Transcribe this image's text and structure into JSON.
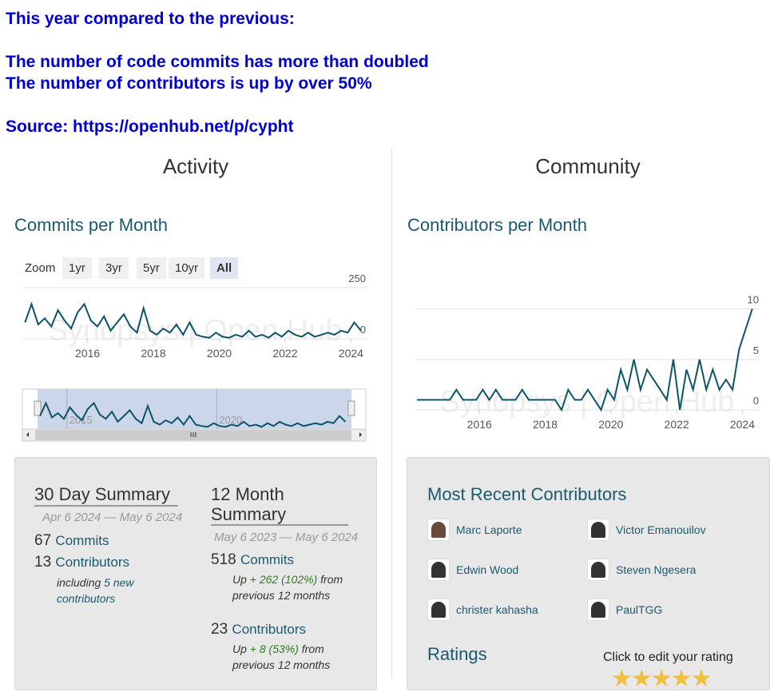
{
  "header": {
    "lines": [
      "This year compared to the previous:",
      "The number of code commits has more than doubled",
      "The number of contributors is up by over 50%",
      "Source: https://openhub.net/p/cypht"
    ]
  },
  "activity": {
    "title": "Activity",
    "chart_title": "Commits per Month",
    "zoom_label": "Zoom",
    "zoom_options": [
      "1yr",
      "3yr",
      "5yr",
      "10yr",
      "All"
    ],
    "chart": {
      "type": "line",
      "watermark": "Synopsys | Open Hub",
      "color": "#0d5469",
      "x": [
        2014.1,
        2014.3,
        2014.5,
        2014.7,
        2014.9,
        2015.1,
        2015.3,
        2015.5,
        2015.7,
        2015.9,
        2016.1,
        2016.3,
        2016.5,
        2016.7,
        2016.9,
        2017.1,
        2017.3,
        2017.5,
        2017.7,
        2017.9,
        2018.1,
        2018.3,
        2018.5,
        2018.7,
        2018.9,
        2019.1,
        2019.3,
        2019.5,
        2019.7,
        2019.9,
        2020.1,
        2020.3,
        2020.5,
        2020.7,
        2020.9,
        2021.1,
        2021.3,
        2021.5,
        2021.7,
        2021.9,
        2022.1,
        2022.3,
        2022.5,
        2022.7,
        2022.9,
        2023.1,
        2023.3,
        2023.5,
        2023.7,
        2023.9,
        2024.1,
        2024.3
      ],
      "values": [
        80,
        170,
        70,
        100,
        60,
        140,
        90,
        50,
        130,
        170,
        90,
        60,
        110,
        40,
        80,
        120,
        60,
        30,
        150,
        40,
        20,
        50,
        30,
        70,
        20,
        80,
        20,
        10,
        5,
        30,
        10,
        5,
        20,
        10,
        40,
        10,
        20,
        5,
        30,
        10,
        40,
        20,
        10,
        30,
        10,
        20,
        30,
        20,
        40,
        30,
        80,
        40
      ],
      "xlim": [
        2014.02,
        2024.5
      ],
      "ylim": [
        0,
        250
      ],
      "xticks": [
        2016,
        2018,
        2020,
        2022,
        2024
      ],
      "yticks": [
        0,
        250
      ],
      "navigator_xticks": [
        2015,
        2020
      ]
    }
  },
  "community": {
    "title": "Community",
    "chart_title": "Contributors per Month",
    "chart": {
      "type": "line",
      "watermark": "Synopsys | Open Hub",
      "color": "#0d5469",
      "x": [
        2014.1,
        2014.3,
        2014.5,
        2014.7,
        2014.9,
        2015.1,
        2015.3,
        2015.5,
        2015.7,
        2015.9,
        2016.1,
        2016.3,
        2016.5,
        2016.7,
        2016.9,
        2017.1,
        2017.3,
        2017.5,
        2017.7,
        2017.9,
        2018.1,
        2018.3,
        2018.5,
        2018.7,
        2018.9,
        2019.1,
        2019.3,
        2019.5,
        2019.7,
        2019.9,
        2020.1,
        2020.3,
        2020.5,
        2020.7,
        2020.9,
        2021.1,
        2021.3,
        2021.5,
        2021.7,
        2021.9,
        2022.1,
        2022.3,
        2022.5,
        2022.7,
        2022.9,
        2023.1,
        2023.3,
        2023.5,
        2023.7,
        2023.9,
        2024.1,
        2024.3
      ],
      "values": [
        1,
        1,
        1,
        1,
        1,
        1,
        2,
        1,
        1,
        1,
        2,
        1,
        2,
        1,
        1,
        1,
        2,
        1,
        1,
        1,
        1,
        1,
        0,
        2,
        1,
        1,
        2,
        1,
        0,
        2,
        1,
        4,
        2,
        5,
        2,
        4,
        3,
        2,
        1,
        5,
        0,
        4,
        2,
        5,
        2,
        4,
        2,
        3,
        2,
        6,
        8,
        10
      ],
      "xlim": [
        2014.05,
        2024.5
      ],
      "ylim": [
        0,
        11
      ],
      "xticks": [
        2016,
        2018,
        2020,
        2022,
        2024
      ],
      "yticks": [
        0,
        5,
        10
      ]
    }
  },
  "summary_30": {
    "title": "30 Day Summary",
    "dates": "Apr 6 2024 — May 6 2024",
    "commits": 67,
    "commits_label": "Commits",
    "contributors": 13,
    "contributors_label": "Contributors",
    "including": "including",
    "new_link": "5 new contributors"
  },
  "summary_12": {
    "title": "12 Month Summary",
    "dates": "May 6 2023 — May 6 2024",
    "commits": 518,
    "commits_label": "Commits",
    "commits_up": "Up",
    "commits_change": "+ 262 (102%)",
    "commits_from": "from previous 12 months",
    "contributors": 23,
    "contributors_label": "Contributors",
    "contributors_up": "Up",
    "contributors_change": "+ 8 (53%)",
    "contributors_from": "from previous 12 months"
  },
  "recent": {
    "title": "Most Recent Contributors",
    "names": [
      "Marc Laporte",
      "Victor Emanouilov",
      "Edwin Wood",
      "Steven Ngesera",
      "christer kahasha",
      "PaulTGG"
    ]
  },
  "ratings": {
    "title": "Ratings",
    "prompt": "Click to edit your rating"
  }
}
